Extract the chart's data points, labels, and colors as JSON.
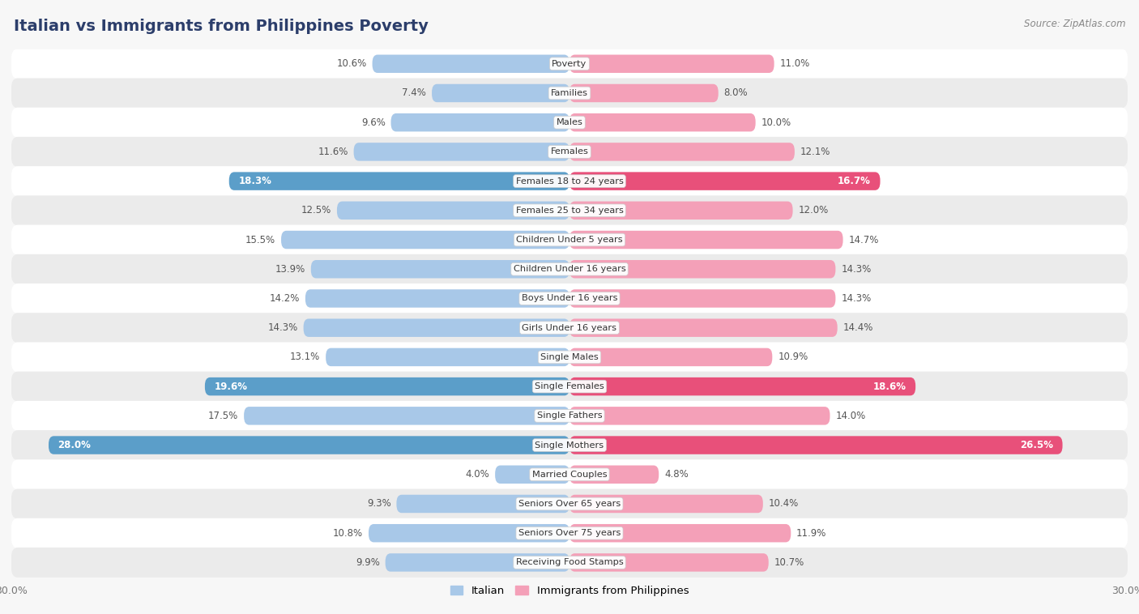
{
  "title": "Italian vs Immigrants from Philippines Poverty",
  "source": "Source: ZipAtlas.com",
  "categories": [
    "Poverty",
    "Families",
    "Males",
    "Females",
    "Females 18 to 24 years",
    "Females 25 to 34 years",
    "Children Under 5 years",
    "Children Under 16 years",
    "Boys Under 16 years",
    "Girls Under 16 years",
    "Single Males",
    "Single Females",
    "Single Fathers",
    "Single Mothers",
    "Married Couples",
    "Seniors Over 65 years",
    "Seniors Over 75 years",
    "Receiving Food Stamps"
  ],
  "italian": [
    10.6,
    7.4,
    9.6,
    11.6,
    18.3,
    12.5,
    15.5,
    13.9,
    14.2,
    14.3,
    13.1,
    19.6,
    17.5,
    28.0,
    4.0,
    9.3,
    10.8,
    9.9
  ],
  "philippines": [
    11.0,
    8.0,
    10.0,
    12.1,
    16.7,
    12.0,
    14.7,
    14.3,
    14.3,
    14.4,
    10.9,
    18.6,
    14.0,
    26.5,
    4.8,
    10.4,
    11.9,
    10.7
  ],
  "italian_color_normal": "#a8c8e8",
  "italian_color_highlight": "#5b9ec9",
  "philippines_color_normal": "#f4a0b8",
  "philippines_color_highlight": "#e8507a",
  "highlight_italian": [
    4,
    11,
    13
  ],
  "highlight_philippines": [
    4,
    11,
    13
  ],
  "xlim": 30.0,
  "bar_height": 0.62,
  "background_color": "#f7f7f7",
  "row_color_odd": "#ffffff",
  "row_color_even": "#ebebeb",
  "legend_italian": "Italian",
  "legend_philippines": "Immigrants from Philippines",
  "title_color": "#2c3e6b",
  "label_color": "#555555",
  "value_color_normal": "#555555",
  "value_color_highlight": "#ffffff"
}
